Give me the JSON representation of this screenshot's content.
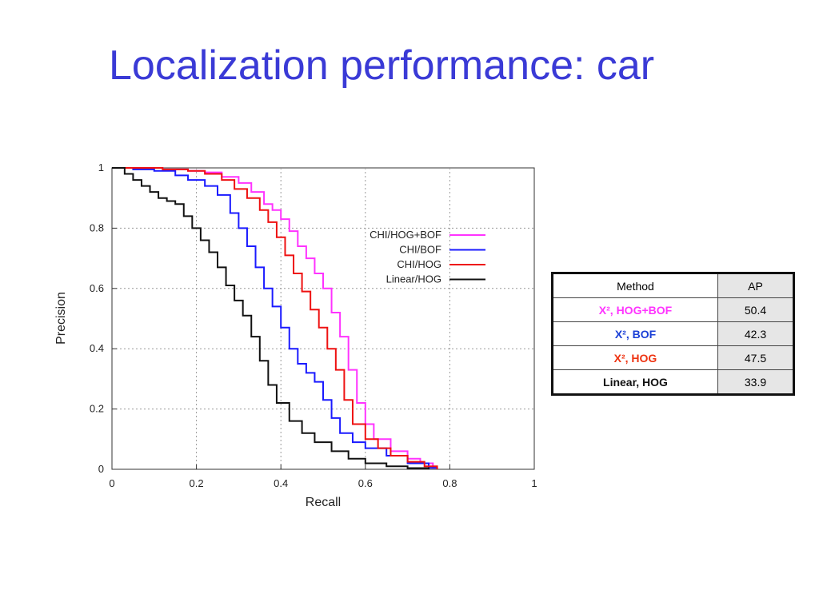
{
  "title": "Localization performance: car",
  "chart_data": {
    "type": "line",
    "xlabel": "Recall",
    "ylabel": "Precision",
    "xlim": [
      0,
      1
    ],
    "ylim": [
      0,
      1
    ],
    "xticks": [
      "0",
      "0.2",
      "0.4",
      "0.6",
      "0.8",
      "1"
    ],
    "yticks": [
      "0",
      "0.2",
      "0.4",
      "0.6",
      "0.8",
      "1"
    ],
    "grid": true,
    "legend_position": "upper-right",
    "series": [
      {
        "name": "CHI/HOG+BOF",
        "color": "#ff33ff",
        "x": [
          0,
          0.06,
          0.12,
          0.18,
          0.22,
          0.26,
          0.3,
          0.33,
          0.36,
          0.38,
          0.4,
          0.42,
          0.44,
          0.46,
          0.48,
          0.5,
          0.52,
          0.54,
          0.56,
          0.58,
          0.6,
          0.62,
          0.66,
          0.7,
          0.73,
          0.76,
          0.77
        ],
        "y": [
          1.0,
          1.0,
          0.995,
          0.99,
          0.985,
          0.97,
          0.95,
          0.92,
          0.88,
          0.86,
          0.83,
          0.79,
          0.74,
          0.7,
          0.65,
          0.6,
          0.52,
          0.44,
          0.33,
          0.22,
          0.15,
          0.1,
          0.06,
          0.035,
          0.02,
          0.005,
          0.0
        ]
      },
      {
        "name": "CHI/BOF",
        "color": "#1a1aff",
        "x": [
          0,
          0.05,
          0.1,
          0.15,
          0.18,
          0.22,
          0.25,
          0.28,
          0.3,
          0.32,
          0.34,
          0.36,
          0.38,
          0.4,
          0.42,
          0.44,
          0.46,
          0.48,
          0.5,
          0.52,
          0.54,
          0.57,
          0.6,
          0.65,
          0.7,
          0.75,
          0.77
        ],
        "y": [
          1.0,
          0.995,
          0.99,
          0.975,
          0.96,
          0.94,
          0.91,
          0.85,
          0.8,
          0.74,
          0.67,
          0.6,
          0.54,
          0.47,
          0.4,
          0.35,
          0.32,
          0.29,
          0.23,
          0.17,
          0.12,
          0.09,
          0.07,
          0.045,
          0.02,
          0.005,
          0.0
        ]
      },
      {
        "name": "CHI/HOG",
        "color": "#ee1111",
        "x": [
          0,
          0.06,
          0.12,
          0.18,
          0.22,
          0.26,
          0.29,
          0.32,
          0.35,
          0.37,
          0.39,
          0.41,
          0.43,
          0.45,
          0.47,
          0.49,
          0.51,
          0.53,
          0.55,
          0.57,
          0.6,
          0.63,
          0.66,
          0.7,
          0.74,
          0.77
        ],
        "y": [
          1.0,
          1.0,
          0.995,
          0.99,
          0.98,
          0.96,
          0.93,
          0.9,
          0.86,
          0.82,
          0.77,
          0.71,
          0.65,
          0.59,
          0.53,
          0.47,
          0.4,
          0.33,
          0.23,
          0.15,
          0.1,
          0.07,
          0.045,
          0.025,
          0.01,
          0.0
        ]
      },
      {
        "name": "Linear/HOG",
        "color": "#111111",
        "x": [
          0,
          0.03,
          0.05,
          0.07,
          0.09,
          0.11,
          0.13,
          0.15,
          0.17,
          0.19,
          0.21,
          0.23,
          0.25,
          0.27,
          0.29,
          0.31,
          0.33,
          0.35,
          0.37,
          0.39,
          0.42,
          0.45,
          0.48,
          0.52,
          0.56,
          0.6,
          0.65,
          0.7,
          0.75
        ],
        "y": [
          1.0,
          0.98,
          0.96,
          0.94,
          0.92,
          0.9,
          0.89,
          0.88,
          0.84,
          0.8,
          0.76,
          0.72,
          0.67,
          0.61,
          0.56,
          0.51,
          0.44,
          0.36,
          0.28,
          0.22,
          0.16,
          0.12,
          0.09,
          0.06,
          0.035,
          0.02,
          0.01,
          0.004,
          0.0
        ]
      }
    ]
  },
  "ap_table": {
    "headers": [
      "Method",
      "AP"
    ],
    "rows": [
      {
        "method": "X², HOG+BOF",
        "ap": "50.4",
        "color": "#ff33ff"
      },
      {
        "method": "X², BOF",
        "ap": "42.3",
        "color": "#1a3fd6"
      },
      {
        "method": "X², HOG",
        "ap": "47.5",
        "color": "#ee3311"
      },
      {
        "method": "Linear, HOG",
        "ap": "33.9",
        "color": "#111111"
      }
    ]
  }
}
